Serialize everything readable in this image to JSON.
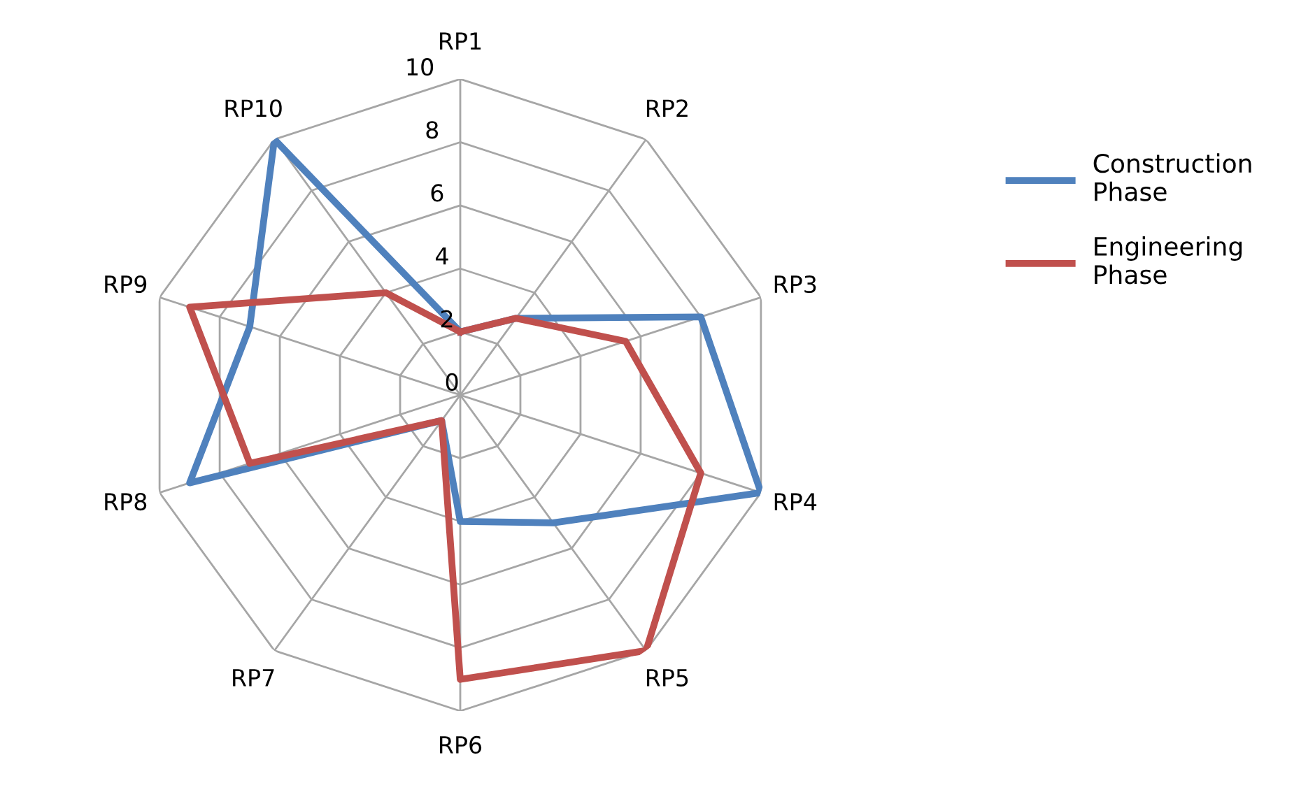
{
  "chart_data": {
    "type": "radar",
    "categories": [
      "RP1",
      "RP2",
      "RP3",
      "RP4",
      "RP5",
      "RP6",
      "RP7",
      "RP8",
      "RP9",
      "RP10"
    ],
    "series": [
      {
        "name": "Construction Phase",
        "color": "#4f81bd",
        "values": [
          2,
          3,
          8,
          10,
          5,
          4,
          1,
          9,
          7,
          10
        ]
      },
      {
        "name": "Engineering Phase",
        "color": "#c0504d",
        "values": [
          2,
          3,
          5.5,
          8,
          10,
          9,
          1,
          7,
          9,
          4
        ]
      }
    ],
    "ylim": [
      0,
      10
    ],
    "yticks": [
      0,
      2,
      4,
      6,
      8,
      10
    ],
    "grid": true,
    "legend": "right",
    "marker": "none",
    "line_style": "solid"
  }
}
